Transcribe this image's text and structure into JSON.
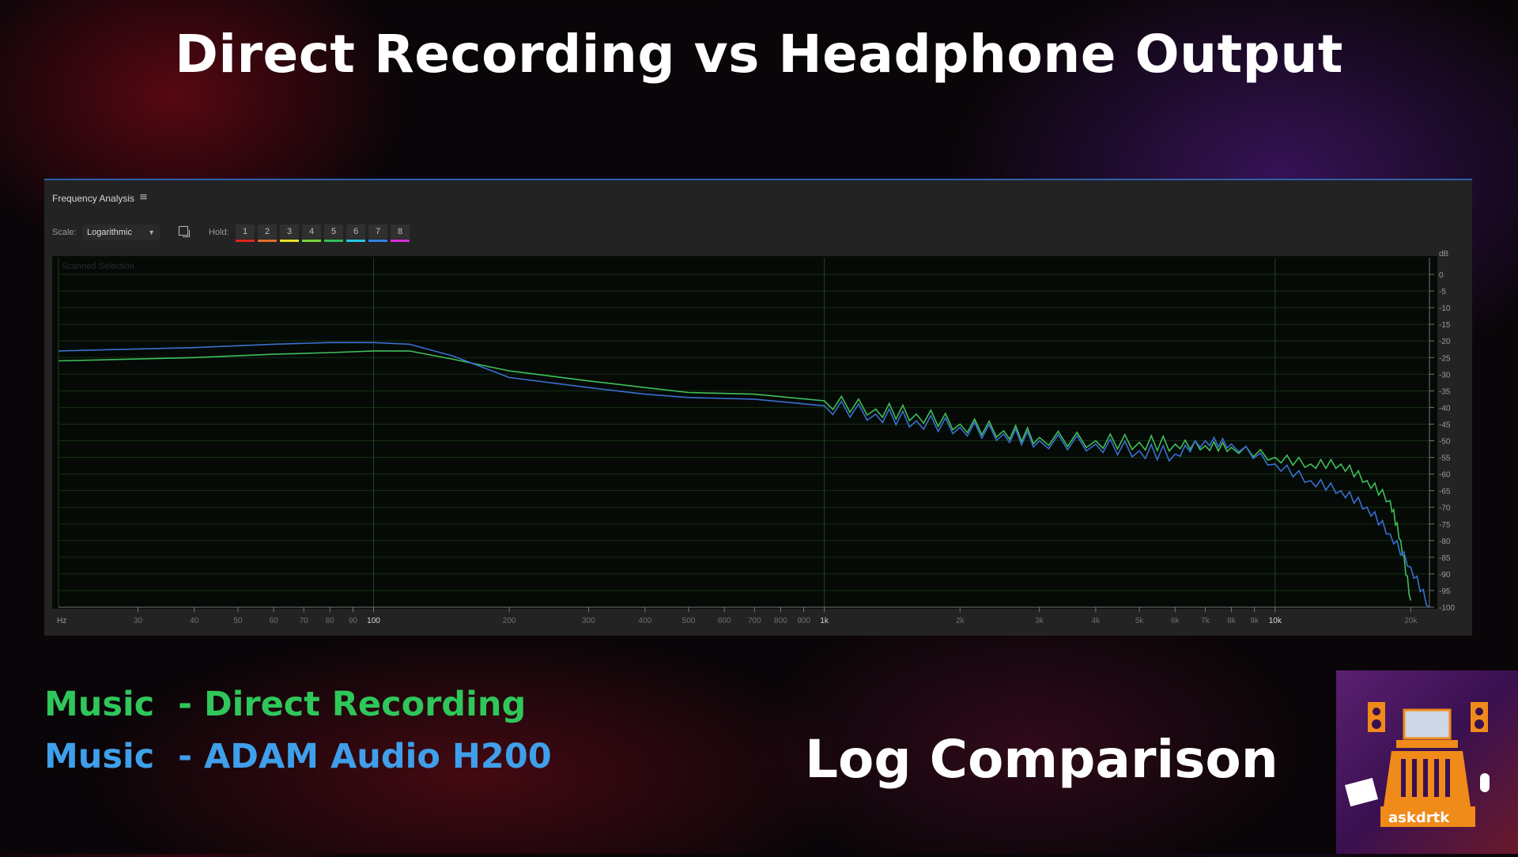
{
  "title": "Direct Recording vs Headphone Output",
  "panel": {
    "title": "Frequency Analysis",
    "scale_label": "Scale:",
    "scale_value": "Logarithmic",
    "hold_label": "Hold:",
    "hold_buttons": [
      {
        "label": "1",
        "color": "#e0261e"
      },
      {
        "label": "2",
        "color": "#e8702a"
      },
      {
        "label": "3",
        "color": "#e9e02a"
      },
      {
        "label": "4",
        "color": "#7ad23a"
      },
      {
        "label": "5",
        "color": "#2fbf5a"
      },
      {
        "label": "6",
        "color": "#27c6e6"
      },
      {
        "label": "7",
        "color": "#2f84e6"
      },
      {
        "label": "8",
        "color": "#d62fd6"
      }
    ],
    "scanned_label": "Scanned Selection"
  },
  "chart_data": {
    "type": "line",
    "xscale": "log",
    "xlim": [
      20,
      22000
    ],
    "ylim": [
      -100,
      5
    ],
    "xlabel": "Hz",
    "ylabel": "dB",
    "x_ticks": [
      {
        "v": 30,
        "label": "30"
      },
      {
        "v": 40,
        "label": "40"
      },
      {
        "v": 50,
        "label": "50"
      },
      {
        "v": 60,
        "label": "60"
      },
      {
        "v": 70,
        "label": "70"
      },
      {
        "v": 80,
        "label": "80"
      },
      {
        "v": 90,
        "label": "90"
      },
      {
        "v": 100,
        "label": "100"
      },
      {
        "v": 200,
        "label": "200"
      },
      {
        "v": 300,
        "label": "300"
      },
      {
        "v": 400,
        "label": "400"
      },
      {
        "v": 500,
        "label": "500"
      },
      {
        "v": 600,
        "label": "600"
      },
      {
        "v": 700,
        "label": "700"
      },
      {
        "v": 800,
        "label": "800"
      },
      {
        "v": 900,
        "label": "900"
      },
      {
        "v": 1000,
        "label": "1k"
      },
      {
        "v": 2000,
        "label": "2k"
      },
      {
        "v": 3000,
        "label": "3k"
      },
      {
        "v": 4000,
        "label": "4k"
      },
      {
        "v": 5000,
        "label": "5k"
      },
      {
        "v": 6000,
        "label": "6k"
      },
      {
        "v": 7000,
        "label": "7k"
      },
      {
        "v": 8000,
        "label": "8k"
      },
      {
        "v": 9000,
        "label": "9k"
      },
      {
        "v": 10000,
        "label": "10k"
      },
      {
        "v": 20000,
        "label": "20k"
      }
    ],
    "y_ticks": [
      0,
      -5,
      -10,
      -15,
      -20,
      -25,
      -30,
      -35,
      -40,
      -45,
      -50,
      -55,
      -60,
      -65,
      -70,
      -75,
      -80,
      -85,
      -90,
      -95,
      -100
    ],
    "series": [
      {
        "color": "#3fbf5a",
        "points": [
          [
            20,
            -26
          ],
          [
            40,
            -25
          ],
          [
            60,
            -24
          ],
          [
            80,
            -23.5
          ],
          [
            100,
            -23
          ],
          [
            120,
            -23
          ],
          [
            150,
            -25.5
          ],
          [
            200,
            -29
          ],
          [
            300,
            -32
          ],
          [
            400,
            -34
          ],
          [
            500,
            -35.5
          ],
          [
            700,
            -36
          ],
          [
            1000,
            -38
          ],
          [
            1300,
            -40.5
          ],
          [
            1600,
            -42
          ],
          [
            2000,
            -45
          ],
          [
            2500,
            -47
          ],
          [
            3000,
            -49
          ],
          [
            4000,
            -50
          ],
          [
            5000,
            -50.5
          ],
          [
            6000,
            -51
          ],
          [
            7000,
            -51.5
          ],
          [
            8000,
            -52
          ],
          [
            10000,
            -55
          ],
          [
            12000,
            -57
          ],
          [
            14000,
            -57
          ],
          [
            16000,
            -62
          ],
          [
            18000,
            -68
          ],
          [
            19000,
            -80
          ],
          [
            20000,
            -98
          ]
        ]
      },
      {
        "color": "#3a6fd0",
        "points": [
          [
            20,
            -23
          ],
          [
            40,
            -22
          ],
          [
            60,
            -21
          ],
          [
            80,
            -20.5
          ],
          [
            100,
            -20.5
          ],
          [
            120,
            -21
          ],
          [
            150,
            -24.5
          ],
          [
            200,
            -31
          ],
          [
            300,
            -34
          ],
          [
            400,
            -36
          ],
          [
            500,
            -37
          ],
          [
            700,
            -37.5
          ],
          [
            1000,
            -39.5
          ],
          [
            1300,
            -42
          ],
          [
            1600,
            -44
          ],
          [
            2000,
            -46
          ],
          [
            2500,
            -48
          ],
          [
            3000,
            -50
          ],
          [
            4000,
            -51
          ],
          [
            5000,
            -53
          ],
          [
            6000,
            -54
          ],
          [
            7000,
            -50
          ],
          [
            8000,
            -51
          ],
          [
            10000,
            -57
          ],
          [
            12000,
            -62
          ],
          [
            14000,
            -65
          ],
          [
            16000,
            -70
          ],
          [
            18000,
            -78
          ],
          [
            20000,
            -88
          ],
          [
            22000,
            -100
          ]
        ]
      }
    ]
  },
  "legend": {
    "line1": "Music  - Direct Recording",
    "line2": "Music  - ADAM Audio H200"
  },
  "subtitle": "Log Comparison",
  "logo": {
    "text": "askdrtk"
  }
}
